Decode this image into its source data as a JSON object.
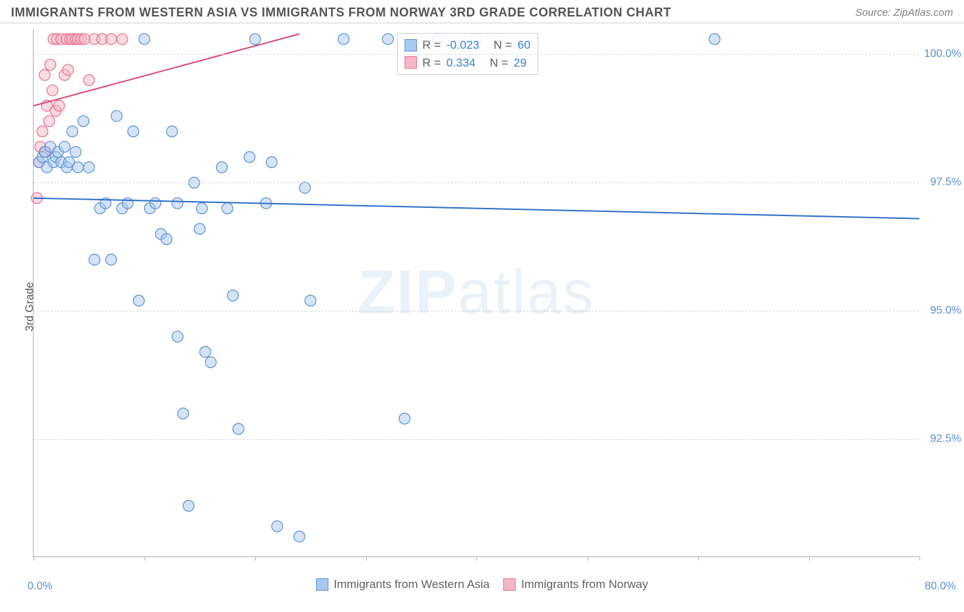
{
  "title": "IMMIGRANTS FROM WESTERN ASIA VS IMMIGRANTS FROM NORWAY 3RD GRADE CORRELATION CHART",
  "source": "Source: ZipAtlas.com",
  "watermark_a": "ZIP",
  "watermark_b": "atlas",
  "chart": {
    "type": "scatter",
    "ylabel": "3rd Grade",
    "xlim": [
      0,
      80
    ],
    "ylim": [
      90.2,
      100.5
    ],
    "x_label_min": "0.0%",
    "x_label_max": "80.0%",
    "x_ticks": [
      0,
      10,
      20,
      30,
      40,
      50,
      60,
      70,
      80
    ],
    "y_gridlines": [
      92.5,
      95.0,
      97.5,
      100.0
    ],
    "y_tick_labels": [
      "92.5%",
      "95.0%",
      "97.5%",
      "100.0%"
    ],
    "background_color": "#ffffff",
    "grid_color": "#d8d8d8",
    "axis_color": "#b0b0b0",
    "tick_label_color": "#5b8fd6",
    "marker_radius": 8,
    "marker_stroke_width": 1.2,
    "line_width": 2,
    "series": [
      {
        "name": "Immigrants from Western Asia",
        "color_fill": "#a9c9ee",
        "color_stroke": "#5b8fd6",
        "fill_opacity": 0.5,
        "r_label": "R =",
        "r_value": "-0.023",
        "n_label": "N =",
        "n_value": "60",
        "trend": {
          "x1": 0,
          "y1": 97.2,
          "x2": 80,
          "y2": 96.8,
          "color": "#2f6fc9"
        },
        "points": [
          [
            0.5,
            97.9
          ],
          [
            0.8,
            98.0
          ],
          [
            1.0,
            98.1
          ],
          [
            1.2,
            97.8
          ],
          [
            1.5,
            98.2
          ],
          [
            1.8,
            97.9
          ],
          [
            2.0,
            98.0
          ],
          [
            2.2,
            98.1
          ],
          [
            2.5,
            97.9
          ],
          [
            2.8,
            98.2
          ],
          [
            3.0,
            97.8
          ],
          [
            3.2,
            97.9
          ],
          [
            3.5,
            98.5
          ],
          [
            3.8,
            98.1
          ],
          [
            4.0,
            97.8
          ],
          [
            4.5,
            98.7
          ],
          [
            5.0,
            97.8
          ],
          [
            5.5,
            96.0
          ],
          [
            6.0,
            97.0
          ],
          [
            6.5,
            97.1
          ],
          [
            7.0,
            96.0
          ],
          [
            7.5,
            98.8
          ],
          [
            8.0,
            97.0
          ],
          [
            8.5,
            97.1
          ],
          [
            9.0,
            98.5
          ],
          [
            9.5,
            95.2
          ],
          [
            10.0,
            100.3
          ],
          [
            10.5,
            97.0
          ],
          [
            11.0,
            97.1
          ],
          [
            11.5,
            96.5
          ],
          [
            12.0,
            96.4
          ],
          [
            12.5,
            98.5
          ],
          [
            13.0,
            97.1
          ],
          [
            13.5,
            93.0
          ],
          [
            13.0,
            94.5
          ],
          [
            14.0,
            91.2
          ],
          [
            14.5,
            97.5
          ],
          [
            15.0,
            96.6
          ],
          [
            15.2,
            97.0
          ],
          [
            15.5,
            94.2
          ],
          [
            16.0,
            94.0
          ],
          [
            17.0,
            97.8
          ],
          [
            17.5,
            97.0
          ],
          [
            18.0,
            95.3
          ],
          [
            18.5,
            92.7
          ],
          [
            19.5,
            98.0
          ],
          [
            20.0,
            100.3
          ],
          [
            21.0,
            97.1
          ],
          [
            21.5,
            97.9
          ],
          [
            22.0,
            90.8
          ],
          [
            24.0,
            90.6
          ],
          [
            24.5,
            97.4
          ],
          [
            25.0,
            95.2
          ],
          [
            28.0,
            100.3
          ],
          [
            32.0,
            100.3
          ],
          [
            33.5,
            92.9
          ],
          [
            36.5,
            100.3
          ],
          [
            40.0,
            100.3
          ],
          [
            42.0,
            100.3
          ],
          [
            61.5,
            100.3
          ]
        ]
      },
      {
        "name": "Immigrants from Norway",
        "color_fill": "#f4b7c6",
        "color_stroke": "#e66f92",
        "fill_opacity": 0.5,
        "r_label": "R =",
        "r_value": "0.334",
        "n_label": "N =",
        "n_value": "29",
        "trend": {
          "x1": 0,
          "y1": 99.0,
          "x2": 24,
          "y2": 100.4,
          "color": "#d94b77"
        },
        "points": [
          [
            0.3,
            97.2
          ],
          [
            0.5,
            97.9
          ],
          [
            0.6,
            98.2
          ],
          [
            0.8,
            98.5
          ],
          [
            1.0,
            99.6
          ],
          [
            1.1,
            98.1
          ],
          [
            1.2,
            99.0
          ],
          [
            1.4,
            98.7
          ],
          [
            1.5,
            99.8
          ],
          [
            1.7,
            99.3
          ],
          [
            1.8,
            100.3
          ],
          [
            2.0,
            98.9
          ],
          [
            2.1,
            100.3
          ],
          [
            2.3,
            99.0
          ],
          [
            2.5,
            100.3
          ],
          [
            2.8,
            99.6
          ],
          [
            3.0,
            100.3
          ],
          [
            3.1,
            99.7
          ],
          [
            3.3,
            100.3
          ],
          [
            3.5,
            100.3
          ],
          [
            3.8,
            100.3
          ],
          [
            4.0,
            100.3
          ],
          [
            4.3,
            100.3
          ],
          [
            4.6,
            100.3
          ],
          [
            5.0,
            99.5
          ],
          [
            5.5,
            100.3
          ],
          [
            6.2,
            100.3
          ],
          [
            7.0,
            100.3
          ],
          [
            8.0,
            100.3
          ]
        ]
      }
    ],
    "legend_bottom": [
      {
        "label": "Immigrants from Western Asia",
        "fill": "#a9c9ee",
        "stroke": "#5b8fd6"
      },
      {
        "label": "Immigrants from Norway",
        "fill": "#f4b7c6",
        "stroke": "#e66f92"
      }
    ]
  }
}
